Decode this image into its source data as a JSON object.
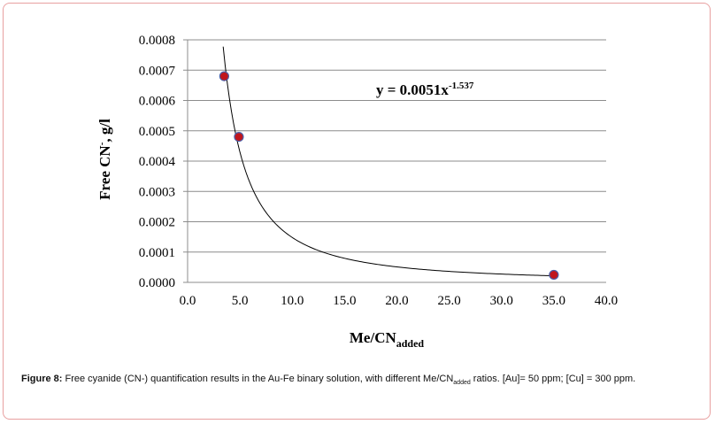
{
  "caption": {
    "label": "Figure 8:",
    "text_before": " Free cyanide (CN-) quantification results in the Au-Fe binary solution, with different Me/CN",
    "text_sub": "added",
    "text_after": " ratios. [Au]= 50 ppm; [Cu] = 300 ppm."
  },
  "chart_data": {
    "type": "scatter",
    "title": "",
    "xlabel": {
      "main": "Me/CN",
      "sub": "added"
    },
    "ylabel": {
      "main": "Free CN",
      "sup": "-",
      "rest": ", g/l"
    },
    "xlim": [
      0,
      40
    ],
    "ylim": [
      0,
      0.0008
    ],
    "x_ticks": [
      "0.0",
      "5.0",
      "10.0",
      "15.0",
      "20.0",
      "25.0",
      "30.0",
      "35.0",
      "40.0"
    ],
    "y_ticks": [
      "0.0000",
      "0.0001",
      "0.0002",
      "0.0003",
      "0.0004",
      "0.0005",
      "0.0006",
      "0.0007",
      "0.0008"
    ],
    "grid": "horizontal",
    "points": [
      {
        "x": 3.5,
        "y": 0.00068
      },
      {
        "x": 4.9,
        "y": 0.00048
      },
      {
        "x": 35.0,
        "y": 2.5e-05
      }
    ],
    "trendline": {
      "type": "power",
      "coefficient": 0.0051,
      "exponent": -1.537,
      "x_range": [
        3.4,
        35.0
      ],
      "equation_main": "y = 0.0051x",
      "equation_sup": "-1.537"
    },
    "marker_color": "#c0161d",
    "marker_edge": "#4a5fa8",
    "grid_color": "#8c8c8c",
    "line_color": "#000000"
  }
}
